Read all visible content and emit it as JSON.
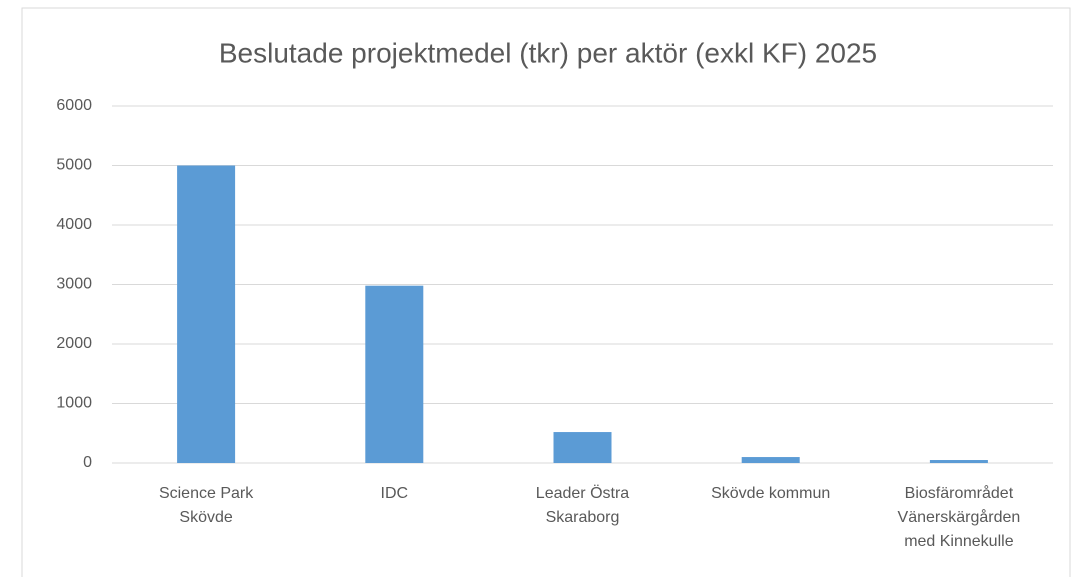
{
  "chart_data": {
    "type": "bar",
    "title": "Beslutade projektmedel (tkr) per aktör (exkl KF) 2025",
    "categories": [
      "Science Park Skövde",
      "IDC",
      "Leader Östra Skaraborg",
      "Skövde kommun",
      "Biosfärområdet Vänerskärgården med Kinnekulle"
    ],
    "values": [
      5000,
      2980,
      520,
      100,
      50
    ],
    "color": "#5b9bd5",
    "ylim": [
      0,
      6000
    ],
    "yticks": [
      0,
      1000,
      2000,
      3000,
      4000,
      5000,
      6000
    ],
    "grid": true
  }
}
